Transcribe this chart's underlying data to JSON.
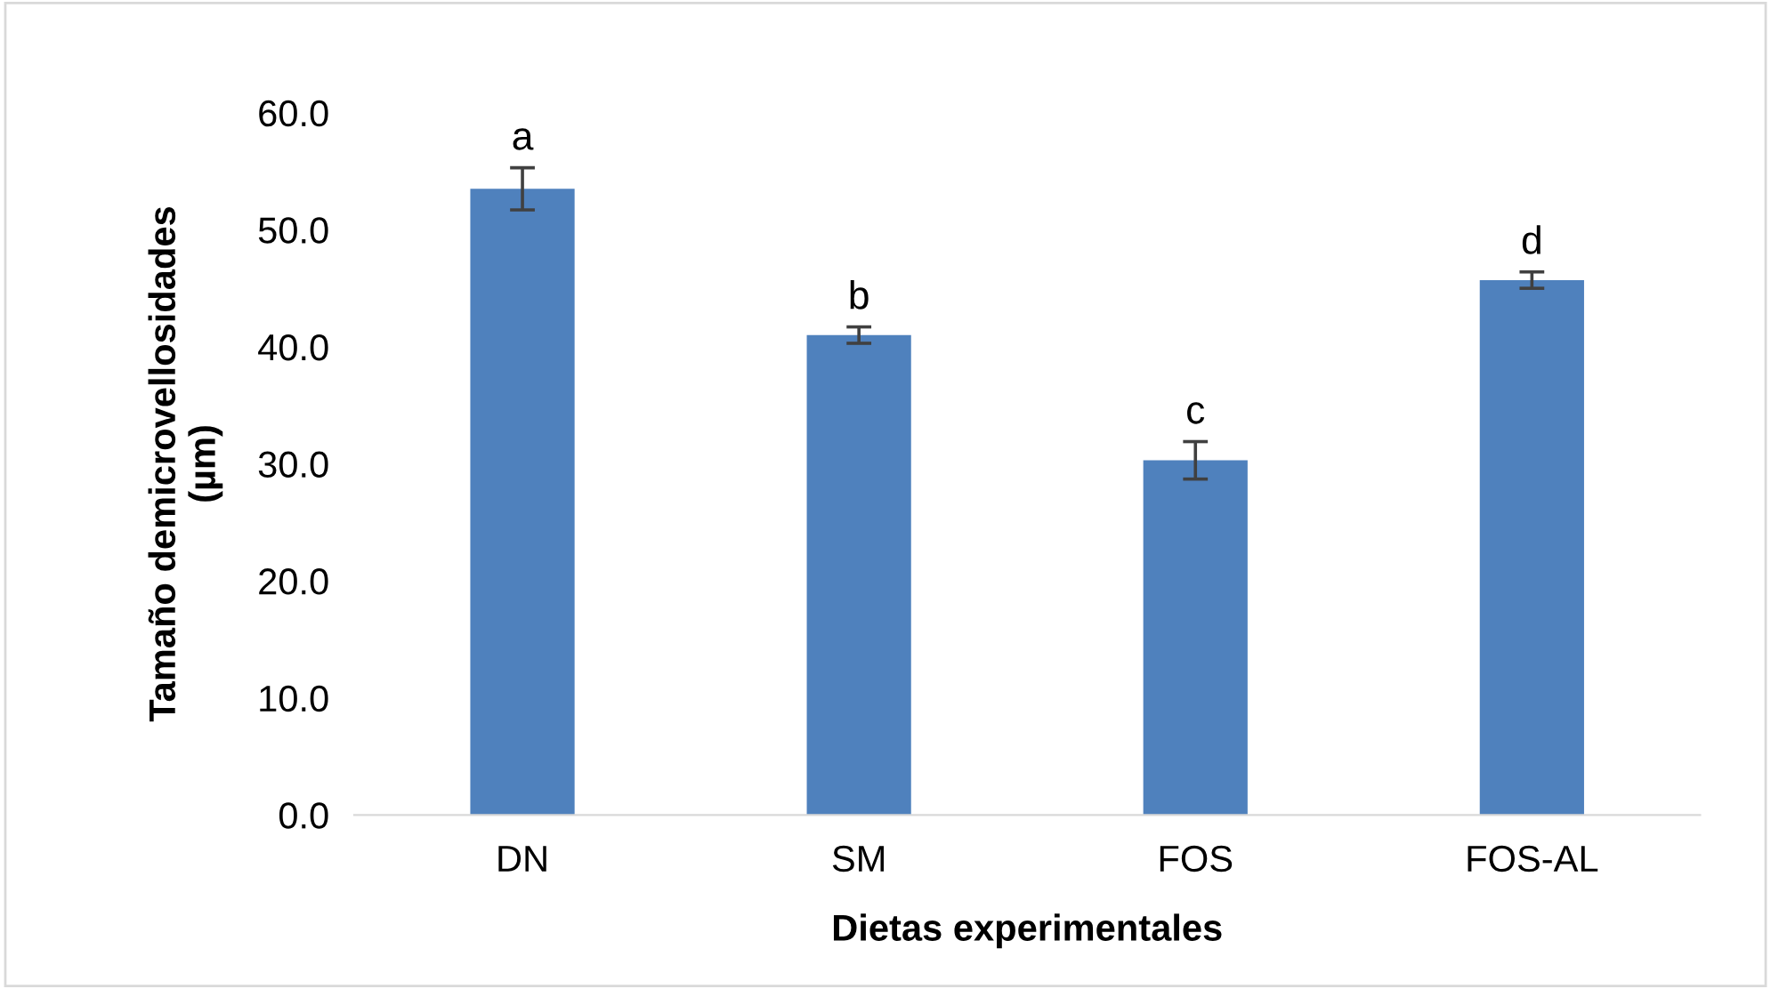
{
  "chart_data": {
    "type": "bar",
    "xlabel": "Dietas experimentales",
    "ylabel": "Tamaño demicrovellosidades\n(µm)",
    "categories": [
      "DN",
      "SM",
      "FOS",
      "FOS-AL"
    ],
    "values": [
      53.5,
      41.0,
      30.3,
      45.7
    ],
    "errors": [
      1.8,
      0.7,
      1.6,
      0.7
    ],
    "color": "#4f81bd",
    "ylim": [
      0,
      60
    ],
    "yticks": [
      {
        "value": 0,
        "label": "0.0"
      },
      {
        "value": 10,
        "label": "10.0"
      },
      {
        "value": 20,
        "label": "20.0"
      },
      {
        "value": 30,
        "label": "30.0"
      },
      {
        "value": 40,
        "label": "40.0"
      },
      {
        "value": 50,
        "label": "50.0"
      },
      {
        "value": 60,
        "label": "60.0"
      }
    ],
    "grid": false,
    "annotations": [
      {
        "text": "a",
        "x": "DN",
        "y": 55.3
      },
      {
        "text": "b",
        "x": "SM",
        "y": 41.7
      },
      {
        "text": "c",
        "x": "FOS",
        "y": 31.9
      },
      {
        "text": "d",
        "x": "FOS-AL",
        "y": 46.4
      }
    ]
  }
}
